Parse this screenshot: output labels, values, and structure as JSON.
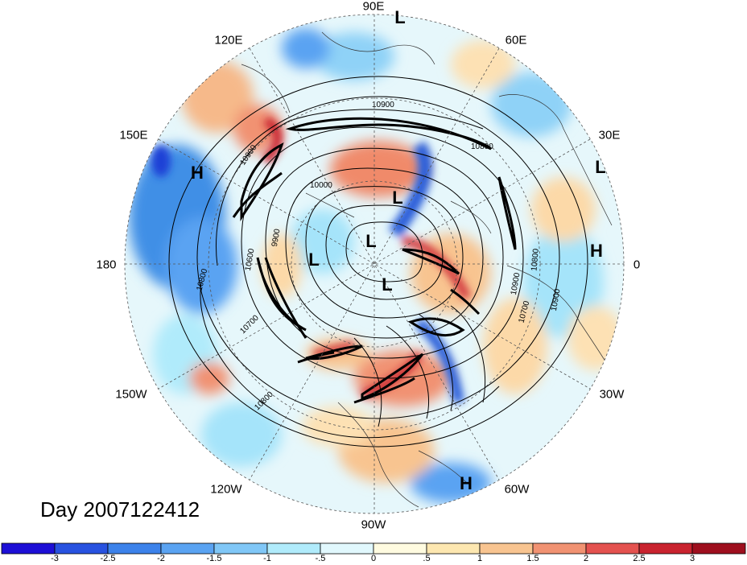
{
  "title": "Day 2007122412",
  "longitude_labels": {
    "lon_90E": "90E",
    "lon_120E": "120E",
    "lon_60E": "60E",
    "lon_150E": "150E",
    "lon_30E": "30E",
    "lon_180": "180",
    "lon_0": "0",
    "lon_150W": "150W",
    "lon_30W": "30W",
    "lon_120W": "120W",
    "lon_60W": "60W",
    "lon_90W": "90W"
  },
  "pressure_centers": [
    "L",
    "H",
    "L",
    "L",
    "L",
    "L",
    "H",
    "L",
    "H"
  ],
  "contour_labels": [
    "10900",
    "10800",
    "10000",
    "9900",
    "10600",
    "10800",
    "10700",
    "10900",
    "10800",
    "10700",
    "10900",
    "10800",
    "10900"
  ],
  "colorbar": {
    "ticks": [
      "-3",
      "-2.5",
      "-2",
      "-1.5",
      "-1",
      "-.5",
      "0",
      ".5",
      "1",
      "1.5",
      "2",
      "2.5",
      "3"
    ],
    "colors": [
      "#1d0fd6",
      "#2852e0",
      "#3c82ea",
      "#5aa3f2",
      "#80c7f7",
      "#b0ebfb",
      "#e1f8fd",
      "#fffbe0",
      "#fde7b0",
      "#f8c490",
      "#f19272",
      "#e4524f",
      "#c9232f",
      "#9e0f1e"
    ]
  }
}
